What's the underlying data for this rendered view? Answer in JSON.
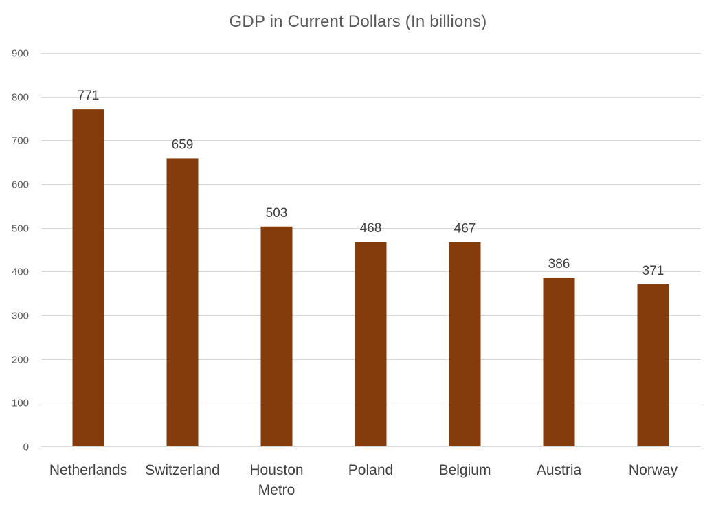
{
  "chart_data": {
    "type": "bar",
    "title": "GDP in Current Dollars (In billions)",
    "xlabel": "",
    "ylabel": "",
    "categories": [
      "Netherlands",
      "Switzerland",
      "Houston Metro",
      "Poland",
      "Belgium",
      "Austria",
      "Norway"
    ],
    "values": [
      771,
      659,
      503,
      468,
      467,
      386,
      371
    ],
    "data_labels": [
      "771",
      "659",
      "503",
      "468",
      "467",
      "386",
      "371"
    ],
    "ylim": [
      0,
      900
    ],
    "yticks": [
      0,
      100,
      200,
      300,
      400,
      500,
      600,
      700,
      800,
      900
    ],
    "grid": true,
    "legend": "none",
    "bar_color": "#843c0c"
  }
}
